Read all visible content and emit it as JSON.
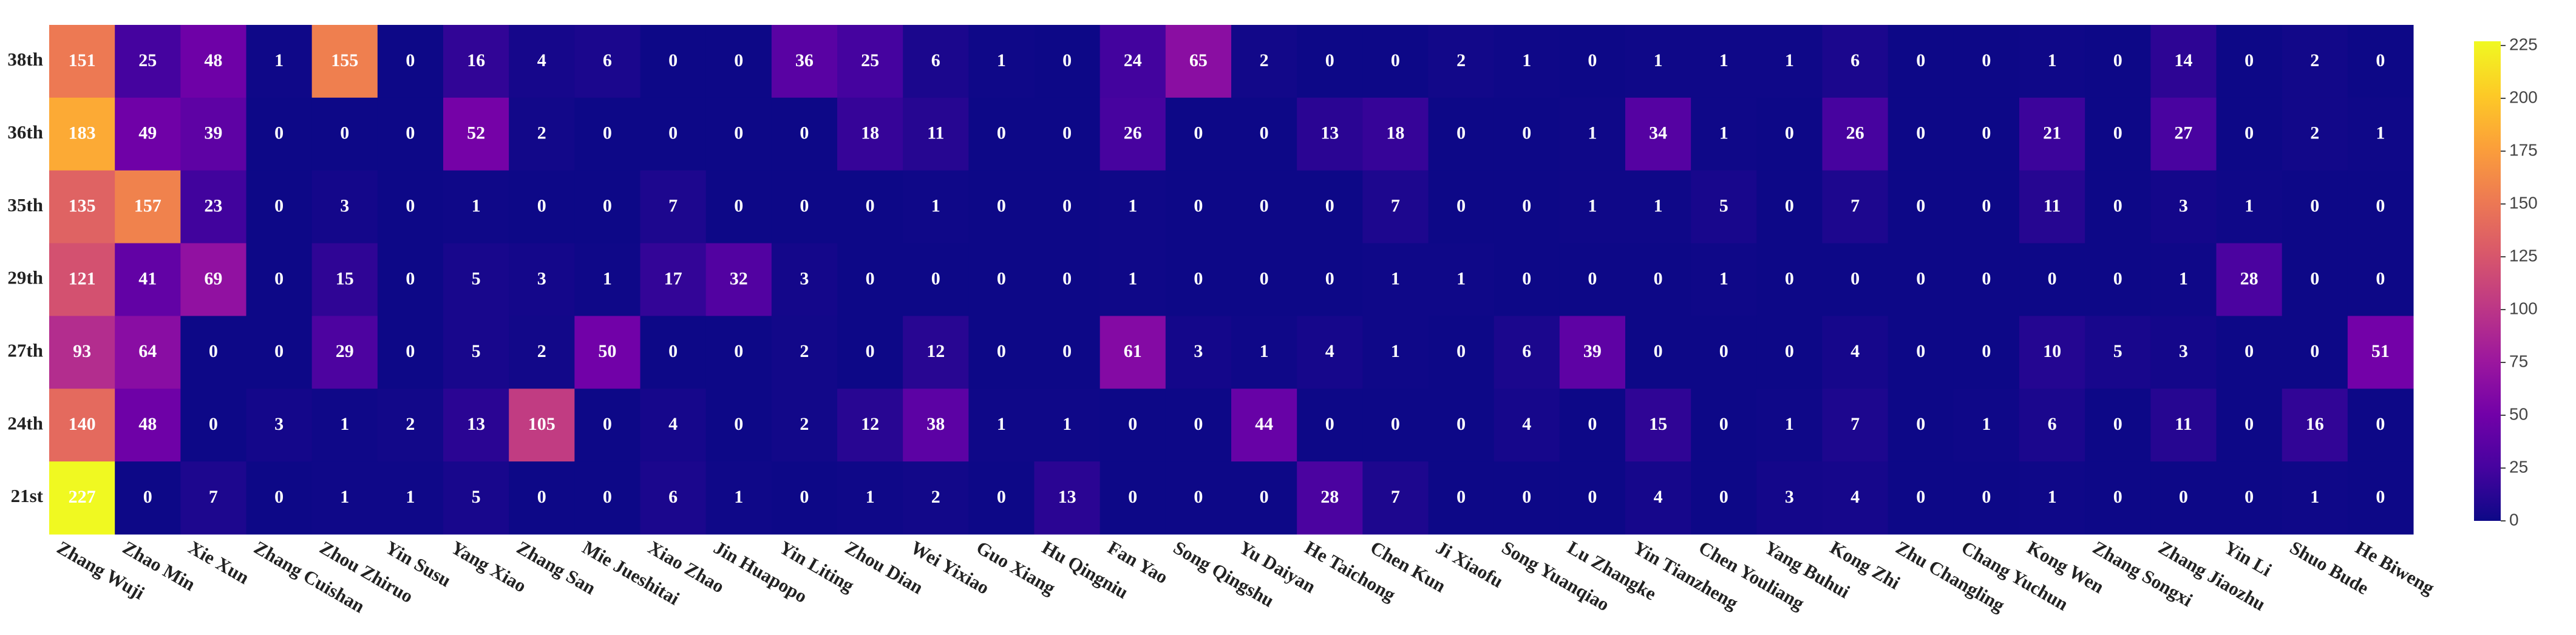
{
  "chart_data": {
    "type": "heatmap",
    "colorscale": "Plasma",
    "x": [
      "Zhang Wuji",
      "Zhao Min",
      "Xie Xun",
      "Zhang Cuishan",
      "Zhou Zhiruo",
      "Yin Susu",
      "Yang Xiao",
      "Zhang San",
      "Mie Jueshitai",
      "Xiao Zhao",
      "Jin Huapopo",
      "Yin Liting",
      "Zhou Dian",
      "Wei Yixiao",
      "Guo Xiang",
      "Hu Qingniu",
      "Fan Yao",
      "Song Qingshu",
      "Yu Daiyan",
      "He Taichong",
      "Chen Kun",
      "Ji Xiaofu",
      "Song Yuanqiao",
      "Lu Zhangke",
      "Yin Tianzheng",
      "Chen Youliang",
      "Yang Buhui",
      "Kong Zhi",
      "Zhu Changling",
      "Chang Yuchun",
      "Kong Wen",
      "Zhang Songxi",
      "Zhang Jiaozhu",
      "Yin Li",
      "Shuo Bude",
      "He Biweng"
    ],
    "y": [
      "38th",
      "36th",
      "35th",
      "29th",
      "27th",
      "24th",
      "21st"
    ],
    "z": [
      [
        151,
        25,
        48,
        1,
        155,
        0,
        16,
        4,
        6,
        0,
        0,
        36,
        25,
        6,
        1,
        0,
        24,
        65,
        2,
        0,
        0,
        2,
        1,
        0,
        1,
        1,
        1,
        6,
        0,
        0,
        1,
        0,
        14,
        0,
        2,
        0
      ],
      [
        183,
        49,
        39,
        0,
        0,
        0,
        52,
        2,
        0,
        0,
        0,
        0,
        18,
        11,
        0,
        0,
        26,
        0,
        0,
        13,
        18,
        0,
        0,
        1,
        34,
        1,
        0,
        26,
        0,
        0,
        21,
        0,
        27,
        0,
        2,
        1
      ],
      [
        135,
        157,
        23,
        0,
        3,
        0,
        1,
        0,
        0,
        7,
        0,
        0,
        0,
        1,
        0,
        0,
        1,
        0,
        0,
        0,
        7,
        0,
        0,
        1,
        1,
        5,
        0,
        7,
        0,
        0,
        11,
        0,
        3,
        1,
        0,
        0
      ],
      [
        121,
        41,
        69,
        0,
        15,
        0,
        5,
        3,
        1,
        17,
        32,
        3,
        0,
        0,
        0,
        0,
        1,
        0,
        0,
        0,
        1,
        1,
        0,
        0,
        0,
        1,
        0,
        0,
        0,
        0,
        0,
        0,
        1,
        28,
        0,
        0
      ],
      [
        93,
        64,
        0,
        0,
        29,
        0,
        5,
        2,
        50,
        0,
        0,
        2,
        0,
        12,
        0,
        0,
        61,
        3,
        1,
        4,
        1,
        0,
        6,
        39,
        0,
        0,
        0,
        4,
        0,
        0,
        10,
        5,
        3,
        0,
        0,
        51
      ],
      [
        140,
        48,
        0,
        3,
        1,
        2,
        13,
        105,
        0,
        4,
        0,
        2,
        12,
        38,
        1,
        1,
        0,
        0,
        44,
        0,
        0,
        0,
        4,
        0,
        15,
        0,
        1,
        7,
        0,
        1,
        6,
        0,
        11,
        0,
        16,
        0
      ],
      [
        227,
        0,
        7,
        0,
        1,
        1,
        5,
        0,
        0,
        6,
        1,
        0,
        1,
        2,
        0,
        13,
        0,
        0,
        0,
        28,
        7,
        0,
        0,
        0,
        4,
        0,
        3,
        4,
        0,
        0,
        1,
        0,
        0,
        0,
        1,
        0
      ]
    ],
    "zlim": [
      0,
      227
    ],
    "colorbar_ticks": [
      0,
      25,
      50,
      75,
      100,
      125,
      150,
      175,
      200,
      225
    ]
  }
}
